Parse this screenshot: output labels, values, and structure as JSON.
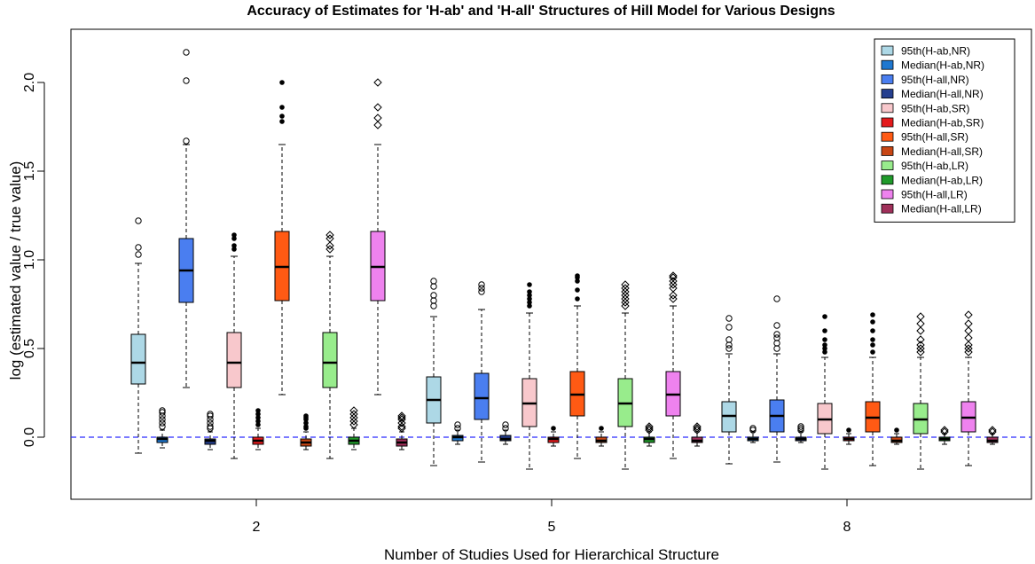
{
  "chart_data": {
    "type": "box",
    "title": "Accuracy of Estimates for 'H-ab' and 'H-all' Structures of Hill Model for Various Designs",
    "xlabel": "Number of Studies Used for Hierarchical Structure",
    "ylabel": "log (estimated value / true value)",
    "categories": [
      "2",
      "5",
      "8"
    ],
    "yticks": [
      "0.0",
      "0.5",
      "1.0",
      "1.5",
      "2.0"
    ],
    "ylim": [
      -0.35,
      2.3
    ],
    "reference_line": {
      "y": 0,
      "color": "#2b2bff",
      "style": "dashed"
    },
    "legend_position": "top-right",
    "series": [
      {
        "name": "95th(H-ab,NR)",
        "color": "#add8e6",
        "outlier_marker": "circle"
      },
      {
        "name": "Median(H-ab,NR)",
        "color": "#1f78d0",
        "outlier_marker": "circle"
      },
      {
        "name": "95th(H-all,NR)",
        "color": "#4a7ef0",
        "outlier_marker": "circle"
      },
      {
        "name": "Median(H-all,NR)",
        "color": "#253f8f",
        "outlier_marker": "circle"
      },
      {
        "name": "95th(H-ab,SR)",
        "color": "#f8c8cc",
        "outlier_marker": "dot"
      },
      {
        "name": "Median(H-ab,SR)",
        "color": "#e41a1c",
        "outlier_marker": "dot"
      },
      {
        "name": "95th(H-all,SR)",
        "color": "#ff5a14",
        "outlier_marker": "dot"
      },
      {
        "name": "Median(H-all,SR)",
        "color": "#c84614",
        "outlier_marker": "dot"
      },
      {
        "name": "95th(H-ab,LR)",
        "color": "#98ec8c",
        "outlier_marker": "diamond"
      },
      {
        "name": "Median(H-ab,LR)",
        "color": "#1f9a2a",
        "outlier_marker": "diamond"
      },
      {
        "name": "95th(H-all,LR)",
        "color": "#ee82ee",
        "outlier_marker": "diamond"
      },
      {
        "name": "Median(H-all,LR)",
        "color": "#a0305a",
        "outlier_marker": "diamond"
      }
    ],
    "boxes": [
      {
        "category": "2",
        "series": 0,
        "whisker_low": -0.09,
        "q1": 0.3,
        "median": 0.42,
        "q3": 0.58,
        "whisker_high": 0.98,
        "outliers": [
          1.03,
          1.07,
          1.22
        ]
      },
      {
        "category": "2",
        "series": 1,
        "whisker_low": -0.06,
        "q1": -0.03,
        "median": -0.01,
        "q3": 0.0,
        "whisker_high": 0.04,
        "outliers": [
          0.06,
          0.08,
          0.1,
          0.12,
          0.14,
          0.15
        ]
      },
      {
        "category": "2",
        "series": 2,
        "whisker_low": 0.28,
        "q1": 0.76,
        "median": 0.94,
        "q3": 1.12,
        "whisker_high": 1.65,
        "outliers": [
          1.67,
          2.01,
          2.17
        ]
      },
      {
        "category": "2",
        "series": 3,
        "whisker_low": -0.07,
        "q1": -0.04,
        "median": -0.02,
        "q3": -0.01,
        "whisker_high": 0.03,
        "outliers": [
          0.05,
          0.06,
          0.08,
          0.1,
          0.12,
          0.13
        ]
      },
      {
        "category": "2",
        "series": 4,
        "whisker_low": -0.12,
        "q1": 0.28,
        "median": 0.42,
        "q3": 0.59,
        "whisker_high": 1.02,
        "outliers": [
          1.06,
          1.08,
          1.12,
          1.14
        ]
      },
      {
        "category": "2",
        "series": 5,
        "whisker_low": -0.07,
        "q1": -0.04,
        "median": -0.02,
        "q3": 0.0,
        "whisker_high": 0.05,
        "outliers": [
          0.07,
          0.09,
          0.11,
          0.13,
          0.15
        ]
      },
      {
        "category": "2",
        "series": 6,
        "whisker_low": 0.24,
        "q1": 0.77,
        "median": 0.96,
        "q3": 1.16,
        "whisker_high": 1.65,
        "outliers": [
          1.78,
          1.81,
          1.86,
          2.0
        ]
      },
      {
        "category": "2",
        "series": 7,
        "whisker_low": -0.07,
        "q1": -0.05,
        "median": -0.03,
        "q3": -0.01,
        "whisker_high": 0.03,
        "outliers": [
          0.05,
          0.06,
          0.08,
          0.1,
          0.11,
          0.12
        ]
      },
      {
        "category": "2",
        "series": 8,
        "whisker_low": -0.12,
        "q1": 0.28,
        "median": 0.42,
        "q3": 0.59,
        "whisker_high": 1.02,
        "outliers": [
          1.06,
          1.08,
          1.12,
          1.14
        ]
      },
      {
        "category": "2",
        "series": 9,
        "whisker_low": -0.07,
        "q1": -0.04,
        "median": -0.02,
        "q3": 0.0,
        "whisker_high": 0.05,
        "outliers": [
          0.07,
          0.09,
          0.11,
          0.13,
          0.15
        ]
      },
      {
        "category": "2",
        "series": 10,
        "whisker_low": 0.24,
        "q1": 0.77,
        "median": 0.96,
        "q3": 1.16,
        "whisker_high": 1.65,
        "outliers": [
          1.76,
          1.8,
          1.86,
          2.0
        ]
      },
      {
        "category": "2",
        "series": 11,
        "whisker_low": -0.07,
        "q1": -0.05,
        "median": -0.03,
        "q3": -0.01,
        "whisker_high": 0.03,
        "outliers": [
          0.05,
          0.06,
          0.08,
          0.1,
          0.11,
          0.12
        ]
      },
      {
        "category": "5",
        "series": 0,
        "whisker_low": -0.16,
        "q1": 0.08,
        "median": 0.21,
        "q3": 0.34,
        "whisker_high": 0.68,
        "outliers": [
          0.74,
          0.77,
          0.8,
          0.85,
          0.88
        ]
      },
      {
        "category": "5",
        "series": 1,
        "whisker_low": -0.04,
        "q1": -0.02,
        "median": 0.0,
        "q3": 0.01,
        "whisker_high": 0.04,
        "outliers": [
          0.05,
          0.07
        ]
      },
      {
        "category": "5",
        "series": 2,
        "whisker_low": -0.14,
        "q1": 0.1,
        "median": 0.22,
        "q3": 0.36,
        "whisker_high": 0.72,
        "outliers": [
          0.82,
          0.84,
          0.86
        ]
      },
      {
        "category": "5",
        "series": 3,
        "whisker_low": -0.04,
        "q1": -0.02,
        "median": -0.01,
        "q3": 0.01,
        "whisker_high": 0.04,
        "outliers": [
          0.05,
          0.07
        ]
      },
      {
        "category": "5",
        "series": 4,
        "whisker_low": -0.18,
        "q1": 0.06,
        "median": 0.19,
        "q3": 0.33,
        "whisker_high": 0.7,
        "outliers": [
          0.74,
          0.76,
          0.78,
          0.8,
          0.82,
          0.86
        ]
      },
      {
        "category": "5",
        "series": 5,
        "whisker_low": -0.05,
        "q1": -0.03,
        "median": -0.01,
        "q3": 0.0,
        "whisker_high": 0.03,
        "outliers": [
          0.05
        ]
      },
      {
        "category": "5",
        "series": 6,
        "whisker_low": -0.12,
        "q1": 0.12,
        "median": 0.24,
        "q3": 0.37,
        "whisker_high": 0.74,
        "outliers": [
          0.78,
          0.83,
          0.88,
          0.9,
          0.91
        ]
      },
      {
        "category": "5",
        "series": 7,
        "whisker_low": -0.05,
        "q1": -0.03,
        "median": -0.02,
        "q3": 0.0,
        "whisker_high": 0.03,
        "outliers": [
          0.05
        ]
      },
      {
        "category": "5",
        "series": 8,
        "whisker_low": -0.18,
        "q1": 0.06,
        "median": 0.19,
        "q3": 0.33,
        "whisker_high": 0.7,
        "outliers": [
          0.74,
          0.76,
          0.78,
          0.8,
          0.82,
          0.84,
          0.86
        ]
      },
      {
        "category": "5",
        "series": 9,
        "whisker_low": -0.05,
        "q1": -0.03,
        "median": -0.01,
        "q3": 0.0,
        "whisker_high": 0.03,
        "outliers": [
          0.04,
          0.05,
          0.06
        ]
      },
      {
        "category": "5",
        "series": 10,
        "whisker_low": -0.12,
        "q1": 0.12,
        "median": 0.24,
        "q3": 0.37,
        "whisker_high": 0.74,
        "outliers": [
          0.78,
          0.8,
          0.84,
          0.86,
          0.88,
          0.9,
          0.91
        ]
      },
      {
        "category": "5",
        "series": 11,
        "whisker_low": -0.05,
        "q1": -0.03,
        "median": -0.02,
        "q3": 0.0,
        "whisker_high": 0.03,
        "outliers": [
          0.04,
          0.05,
          0.06
        ]
      },
      {
        "category": "8",
        "series": 0,
        "whisker_low": -0.15,
        "q1": 0.03,
        "median": 0.12,
        "q3": 0.2,
        "whisker_high": 0.47,
        "outliers": [
          0.5,
          0.52,
          0.55,
          0.62,
          0.67
        ]
      },
      {
        "category": "8",
        "series": 1,
        "whisker_low": -0.03,
        "q1": -0.02,
        "median": -0.01,
        "q3": 0.0,
        "whisker_high": 0.03,
        "outliers": [
          0.04,
          0.05
        ]
      },
      {
        "category": "8",
        "series": 2,
        "whisker_low": -0.14,
        "q1": 0.03,
        "median": 0.12,
        "q3": 0.21,
        "whisker_high": 0.47,
        "outliers": [
          0.5,
          0.53,
          0.56,
          0.58,
          0.63,
          0.78
        ]
      },
      {
        "category": "8",
        "series": 3,
        "whisker_low": -0.03,
        "q1": -0.02,
        "median": -0.01,
        "q3": 0.0,
        "whisker_high": 0.03,
        "outliers": [
          0.04,
          0.05,
          0.06
        ]
      },
      {
        "category": "8",
        "series": 4,
        "whisker_low": -0.18,
        "q1": 0.02,
        "median": 0.1,
        "q3": 0.19,
        "whisker_high": 0.45,
        "outliers": [
          0.48,
          0.5,
          0.52,
          0.55,
          0.6,
          0.68
        ]
      },
      {
        "category": "8",
        "series": 5,
        "whisker_low": -0.04,
        "q1": -0.02,
        "median": -0.01,
        "q3": 0.0,
        "whisker_high": 0.02,
        "outliers": [
          0.04
        ]
      },
      {
        "category": "8",
        "series": 6,
        "whisker_low": -0.16,
        "q1": 0.03,
        "median": 0.11,
        "q3": 0.2,
        "whisker_high": 0.45,
        "outliers": [
          0.48,
          0.52,
          0.55,
          0.6,
          0.65,
          0.69
        ]
      },
      {
        "category": "8",
        "series": 7,
        "whisker_low": -0.04,
        "q1": -0.03,
        "median": -0.02,
        "q3": 0.0,
        "whisker_high": 0.02,
        "outliers": [
          0.04
        ]
      },
      {
        "category": "8",
        "series": 8,
        "whisker_low": -0.18,
        "q1": 0.02,
        "median": 0.1,
        "q3": 0.19,
        "whisker_high": 0.45,
        "outliers": [
          0.48,
          0.5,
          0.52,
          0.55,
          0.6,
          0.64,
          0.68
        ]
      },
      {
        "category": "8",
        "series": 9,
        "whisker_low": -0.04,
        "q1": -0.02,
        "median": -0.01,
        "q3": 0.0,
        "whisker_high": 0.02,
        "outliers": [
          0.03,
          0.04
        ]
      },
      {
        "category": "8",
        "series": 10,
        "whisker_low": -0.16,
        "q1": 0.03,
        "median": 0.11,
        "q3": 0.2,
        "whisker_high": 0.45,
        "outliers": [
          0.48,
          0.5,
          0.52,
          0.56,
          0.6,
          0.64,
          0.69
        ]
      },
      {
        "category": "8",
        "series": 11,
        "whisker_low": -0.04,
        "q1": -0.03,
        "median": -0.02,
        "q3": 0.0,
        "whisker_high": 0.02,
        "outliers": [
          0.03,
          0.04
        ]
      }
    ]
  }
}
